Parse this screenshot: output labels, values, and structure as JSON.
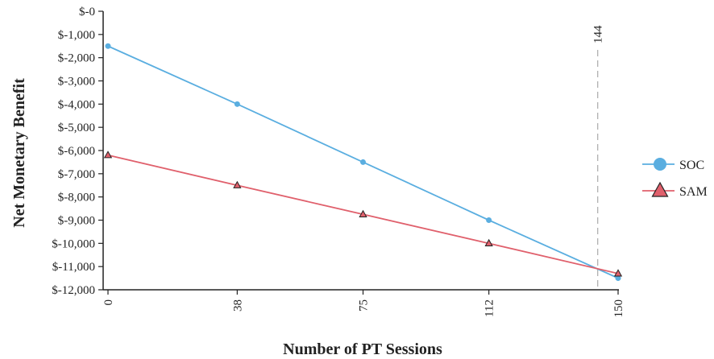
{
  "chart_data": {
    "type": "line",
    "xlabel": "Number of PT Sessions",
    "ylabel": "Net Monetary Benefit",
    "x": [
      0,
      38,
      75,
      112,
      150
    ],
    "x_tick_labels": [
      "0",
      "38",
      "75",
      "112",
      "150"
    ],
    "xlim": [
      0,
      150
    ],
    "ylim": [
      -12000,
      0
    ],
    "y_ticks": [
      0,
      -1000,
      -2000,
      -3000,
      -4000,
      -5000,
      -6000,
      -7000,
      -8000,
      -9000,
      -10000,
      -11000,
      -12000
    ],
    "y_tick_labels": [
      "$-0",
      "$-1,000",
      "$-2,000",
      "$-3,000",
      "$-4,000",
      "$-5,000",
      "$-6,000",
      "$-7,000",
      "$-8,000",
      "$-9,000",
      "$-10,000",
      "$-11,000",
      "$-12,000"
    ],
    "series": [
      {
        "name": "SOC",
        "color": "#5aaee0",
        "marker": "circle",
        "values": [
          -1500,
          -4000,
          -6500,
          -9000,
          -11500
        ]
      },
      {
        "name": "SAM",
        "color": "#e0606c",
        "marker": "triangle",
        "values": [
          -6200,
          -7500,
          -8750,
          -10000,
          -11300
        ]
      }
    ],
    "reference_line": {
      "x": 144,
      "label": "144",
      "style": "dashed",
      "color": "#b0b0b0"
    },
    "legend_position": "right",
    "grid": false
  }
}
